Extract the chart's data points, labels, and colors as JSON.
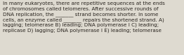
{
  "text": "In many eukaryotes, there are repetitive sequences at the ends\nof chromosomes called telomeres. After successive rounds of\nDNA replication, the _______ strand becomes shorter. In some\ncells, an enzyme called _______ repairs the shortened strand. A)\nlagging; telomerase B) leading; DNA polymerase I C) leading;\nreplicase D) lagging; DNA polymerase I E) leading; telomerase",
  "background_color": "#dedad0",
  "text_color": "#2a2520",
  "fontsize": 5.2,
  "font_family": "DejaVu Sans"
}
